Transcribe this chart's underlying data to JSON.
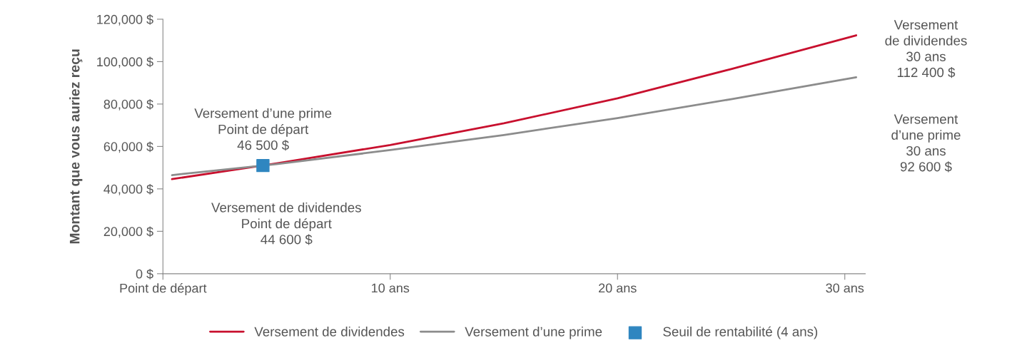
{
  "chart_data": {
    "type": "line",
    "ylabel": "Montant que vous auriez reçu",
    "xlim": [
      0,
      30.9
    ],
    "xticks": [
      {
        "value": 0,
        "label": "Point de départ"
      },
      {
        "value": 10,
        "label": "10 ans"
      },
      {
        "value": 20,
        "label": "20 ans"
      },
      {
        "value": 30,
        "label": "30 ans"
      }
    ],
    "ylim": [
      0,
      120000
    ],
    "yticks": [
      {
        "value": 0,
        "label": "0 $"
      },
      {
        "value": 20000,
        "label": "20,000 $"
      },
      {
        "value": 40000,
        "label": "40,000 $"
      },
      {
        "value": 60000,
        "label": "60,000 $"
      },
      {
        "value": 80000,
        "label": "80,000 $"
      },
      {
        "value": 100000,
        "label": "100,000 $"
      },
      {
        "value": 120000,
        "label": "120,000 $"
      }
    ],
    "series": [
      {
        "name": "Versement de dividendes",
        "color": "#c8102e",
        "x": [
          0.4,
          5,
          10,
          15,
          20,
          25,
          30.5
        ],
        "values": [
          44600,
          52000,
          60700,
          70900,
          82700,
          96500,
          112400
        ]
      },
      {
        "name": "Versement d’une prime",
        "color": "#8c8c8c",
        "x": [
          0.4,
          5,
          10,
          15,
          20,
          25,
          30.5
        ],
        "values": [
          46500,
          51700,
          58300,
          65400,
          73400,
          82300,
          92600
        ]
      },
      {
        "name": "Seuil de rentabilité (4 ans)",
        "type": "scatter",
        "marker": "square",
        "color": "#2f86c0",
        "x": [
          4.4
        ],
        "values": [
          51000
        ]
      }
    ],
    "annotations": [
      "Versement d’une prime\nPoint de départ\n46 500 $",
      "Versement de dividendes\nPoint de départ\n44 600 $",
      "Versement\nde dividendes\n30 ans\n112 400 $",
      "Versement\nd’une prime\n30 ans\n92 600 $"
    ],
    "grid": false,
    "legend": "bottom"
  }
}
